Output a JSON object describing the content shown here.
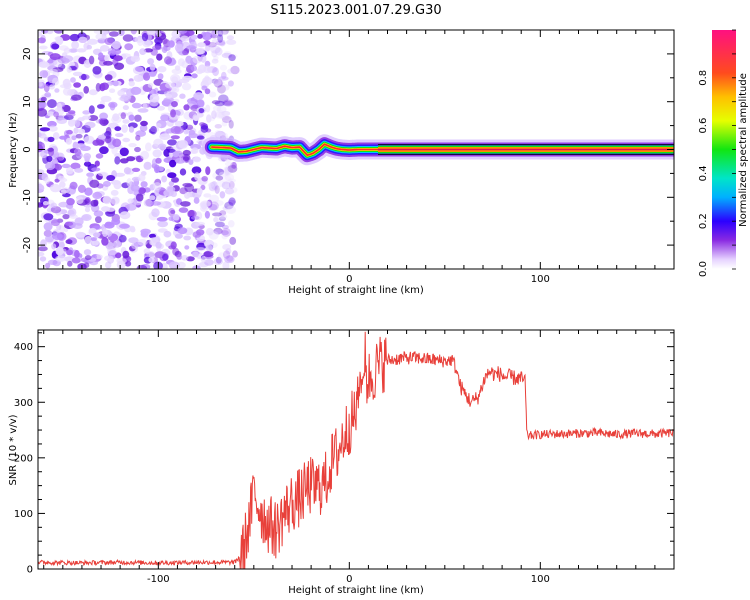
{
  "title": "S115.2023.001.07.29.G30",
  "chart_data": [
    {
      "type": "heatmap",
      "title": "",
      "xlabel": "Height of straight line (km)",
      "ylabel": "Frequency (Hz)",
      "xlim": [
        -163,
        170
      ],
      "ylim": [
        -25,
        25
      ],
      "xticks": [
        -100,
        0,
        100
      ],
      "yticks": [
        -20,
        -10,
        0,
        10,
        20
      ],
      "noise_region_x": [
        -163,
        -65
      ],
      "signal_region_x": [
        -72,
        170
      ],
      "signal_track": {
        "x": [
          -72,
          -66,
          -62,
          -58,
          -54,
          -50,
          -46,
          -42,
          -38,
          -34,
          -30,
          -26,
          -22,
          -19,
          -16,
          -13,
          -10,
          -7,
          -4,
          0,
          5,
          10,
          15,
          30,
          60,
          100,
          140,
          170
        ],
        "y": [
          0.5,
          0.4,
          0.3,
          -0.5,
          -0.4,
          0.0,
          0.4,
          0.3,
          0.2,
          0.7,
          0.4,
          0.5,
          -1.2,
          -0.8,
          0.0,
          1.1,
          0.6,
          0.2,
          0.0,
          -0.1,
          0.0,
          0.0,
          0.0,
          0.0,
          0.0,
          0.0,
          0.0,
          0.0
        ]
      },
      "colorbar": {
        "label": "Normalized spectral amplitude",
        "range": [
          0,
          1
        ],
        "ticks": [
          0.0,
          0.2,
          0.4,
          0.6,
          0.8
        ],
        "tick_labels": [
          "0.0",
          "0.2",
          "0.4",
          "0.6",
          "0.8"
        ]
      }
    },
    {
      "type": "line",
      "title": "",
      "xlabel": "Height of straight line (km)",
      "ylabel": "SNR (10 * v/v)",
      "xlim": [
        -163,
        170
      ],
      "ylim": [
        0,
        430
      ],
      "xticks": [
        -100,
        0,
        100
      ],
      "yticks": [
        0,
        100,
        200,
        300,
        400
      ],
      "color": "#e8403a",
      "series": [
        {
          "x": [
            -163,
            -140,
            -120,
            -100,
            -80,
            -60,
            -56,
            -52,
            -50,
            -48,
            -45,
            -42,
            -40,
            -38,
            -35,
            -32,
            -30,
            -27,
            -24,
            -21,
            -18,
            -15,
            -12,
            -10,
            -8,
            -6,
            -4,
            -2,
            0,
            2,
            4,
            6,
            8,
            10,
            12,
            14,
            16,
            18,
            20,
            25,
            30,
            35,
            40,
            45,
            50,
            54,
            56,
            58,
            60,
            62,
            64,
            66,
            68,
            70,
            72,
            74,
            76,
            78,
            80,
            82,
            84,
            86,
            88,
            90,
            92,
            93,
            95,
            100,
            110,
            120,
            130,
            140,
            150,
            160,
            170
          ],
          "y": [
            12,
            11,
            12,
            11,
            12,
            12,
            25,
            90,
            140,
            120,
            95,
            80,
            75,
            70,
            95,
            110,
            120,
            125,
            135,
            150,
            145,
            150,
            160,
            185,
            200,
            210,
            230,
            245,
            260,
            270,
            290,
            310,
            330,
            340,
            350,
            360,
            368,
            372,
            375,
            378,
            380,
            380,
            378,
            376,
            374,
            376,
            360,
            330,
            318,
            308,
            300,
            305,
            312,
            335,
            350,
            355,
            350,
            352,
            348,
            345,
            346,
            344,
            343,
            342,
            340,
            240,
            240,
            242,
            243,
            244,
            245,
            242,
            244,
            243,
            245
          ]
        }
      ]
    }
  ]
}
